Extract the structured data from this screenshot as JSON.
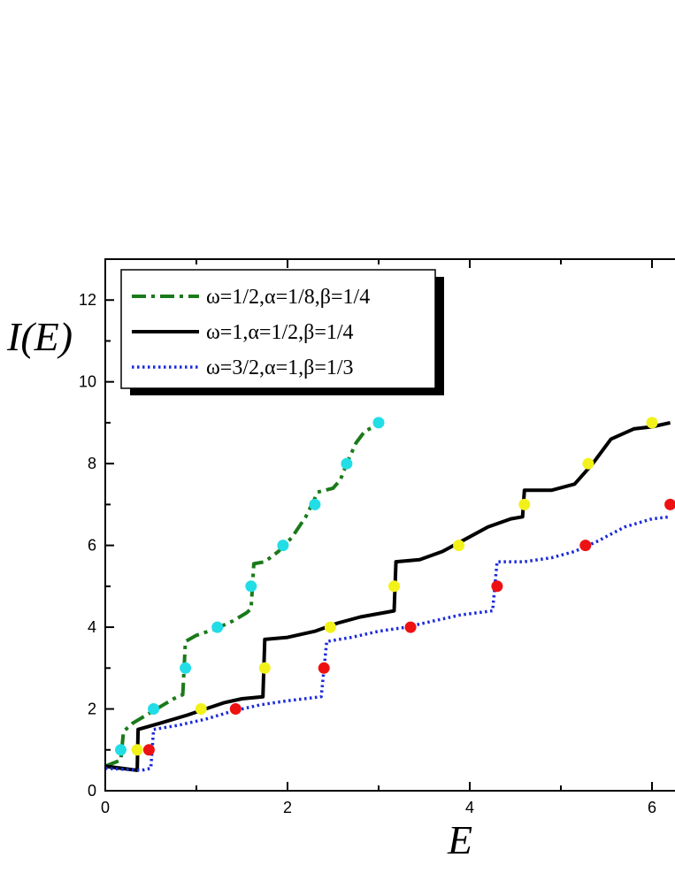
{
  "chart_data": {
    "type": "line",
    "xlabel": "E",
    "ylabel": "I(E)",
    "xlim": [
      0,
      6.2
    ],
    "ylim": [
      0,
      13
    ],
    "xticks": [
      0,
      2,
      4,
      6
    ],
    "yticks": [
      0,
      2,
      4,
      6,
      8,
      10,
      12
    ],
    "grid": false,
    "legend_position": "top-left",
    "series": [
      {
        "name": "ω=1/2,α=1/8,β=1/4",
        "color": "#1a7a1a",
        "style": "dashdot",
        "points": [
          [
            0,
            0.6
          ],
          [
            0.17,
            0.75
          ],
          [
            0.2,
            1.45
          ],
          [
            0.3,
            1.65
          ],
          [
            0.45,
            1.85
          ],
          [
            0.6,
            2.05
          ],
          [
            0.75,
            2.25
          ],
          [
            0.85,
            2.35
          ],
          [
            0.88,
            3.65
          ],
          [
            1.0,
            3.8
          ],
          [
            1.2,
            3.95
          ],
          [
            1.4,
            4.15
          ],
          [
            1.55,
            4.35
          ],
          [
            1.6,
            4.45
          ],
          [
            1.63,
            5.55
          ],
          [
            1.75,
            5.6
          ],
          [
            1.9,
            5.85
          ],
          [
            2.05,
            6.2
          ],
          [
            2.2,
            6.7
          ],
          [
            2.3,
            7.15
          ],
          [
            2.33,
            7.3
          ],
          [
            2.5,
            7.4
          ],
          [
            2.58,
            7.6
          ],
          [
            2.65,
            8.0
          ],
          [
            2.75,
            8.5
          ],
          [
            2.85,
            8.8
          ],
          [
            3.0,
            8.95
          ]
        ],
        "marker_points": [
          [
            0.17,
            1.0
          ],
          [
            0.53,
            2.0
          ],
          [
            0.88,
            3.0
          ],
          [
            1.23,
            4.0
          ],
          [
            1.6,
            5.0
          ],
          [
            1.95,
            6.0
          ],
          [
            2.3,
            7.0
          ],
          [
            2.65,
            8.0
          ],
          [
            3.0,
            9.0
          ]
        ],
        "marker_color": "#22dde6"
      },
      {
        "name": "ω=1,α=1/2,β=1/4",
        "color": "#000000",
        "style": "solid",
        "points": [
          [
            0,
            0.6
          ],
          [
            0.35,
            0.5
          ],
          [
            0.36,
            1.5
          ],
          [
            0.6,
            1.65
          ],
          [
            0.9,
            1.85
          ],
          [
            1.1,
            2.0
          ],
          [
            1.3,
            2.15
          ],
          [
            1.5,
            2.25
          ],
          [
            1.73,
            2.3
          ],
          [
            1.75,
            3.7
          ],
          [
            2.0,
            3.75
          ],
          [
            2.3,
            3.9
          ],
          [
            2.55,
            4.1
          ],
          [
            2.8,
            4.25
          ],
          [
            3.05,
            4.35
          ],
          [
            3.17,
            4.4
          ],
          [
            3.19,
            5.6
          ],
          [
            3.45,
            5.65
          ],
          [
            3.7,
            5.85
          ],
          [
            3.95,
            6.15
          ],
          [
            4.2,
            6.45
          ],
          [
            4.45,
            6.65
          ],
          [
            4.58,
            6.7
          ],
          [
            4.6,
            7.35
          ],
          [
            4.9,
            7.35
          ],
          [
            5.15,
            7.5
          ],
          [
            5.35,
            8.0
          ],
          [
            5.55,
            8.6
          ],
          [
            5.8,
            8.85
          ],
          [
            6.0,
            8.9
          ],
          [
            6.2,
            9.0
          ]
        ],
        "marker_points": [
          [
            0.35,
            1.0
          ],
          [
            1.05,
            2.0
          ],
          [
            1.75,
            3.0
          ],
          [
            2.47,
            4.0
          ],
          [
            3.17,
            5.0
          ],
          [
            3.88,
            6.0
          ],
          [
            4.6,
            7.0
          ],
          [
            5.3,
            8.0
          ],
          [
            6.0,
            9.0
          ]
        ],
        "marker_color": "#f2f21a"
      },
      {
        "name": "ω=3/2,α=1,β=1/3",
        "color": "#1a2adb",
        "style": "dotted",
        "points": [
          [
            0,
            0.55
          ],
          [
            0.4,
            0.5
          ],
          [
            0.5,
            0.55
          ],
          [
            0.53,
            1.5
          ],
          [
            0.8,
            1.6
          ],
          [
            1.1,
            1.75
          ],
          [
            1.4,
            1.95
          ],
          [
            1.7,
            2.1
          ],
          [
            2.0,
            2.2
          ],
          [
            2.37,
            2.3
          ],
          [
            2.43,
            3.65
          ],
          [
            2.7,
            3.75
          ],
          [
            3.0,
            3.9
          ],
          [
            3.3,
            4.0
          ],
          [
            3.6,
            4.15
          ],
          [
            3.9,
            4.3
          ],
          [
            4.25,
            4.4
          ],
          [
            4.3,
            5.6
          ],
          [
            4.6,
            5.6
          ],
          [
            4.9,
            5.7
          ],
          [
            5.15,
            5.85
          ],
          [
            5.4,
            6.1
          ],
          [
            5.7,
            6.45
          ],
          [
            6.0,
            6.65
          ],
          [
            6.2,
            6.7
          ]
        ],
        "marker_points": [
          [
            0.48,
            1.0
          ],
          [
            1.43,
            2.0
          ],
          [
            2.4,
            3.0
          ],
          [
            3.35,
            4.0
          ],
          [
            4.3,
            5.0
          ],
          [
            5.27,
            6.0
          ],
          [
            6.2,
            7.0
          ]
        ],
        "marker_color": "#ee1111"
      }
    ]
  }
}
